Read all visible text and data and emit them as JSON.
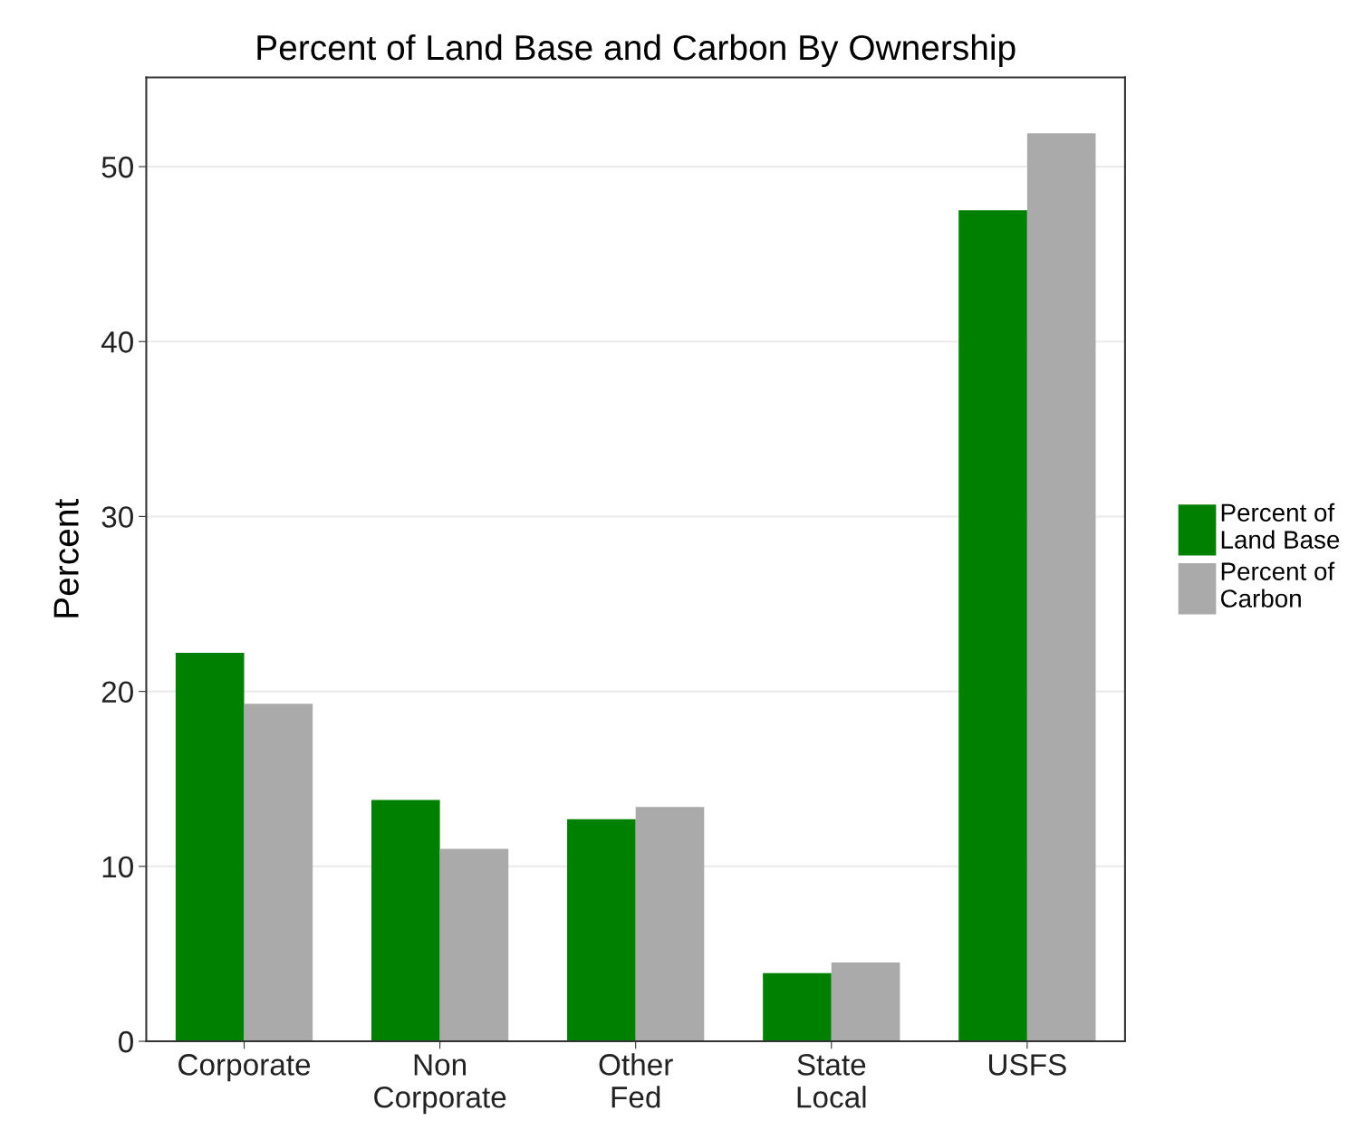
{
  "chart_data": {
    "type": "bar",
    "title": "Percent of Land Base and Carbon By Ownership",
    "ylabel": "Percent",
    "categories": [
      "Corporate",
      "Non\nCorporate",
      "Other\nFed",
      "State\nLocal",
      "USFS"
    ],
    "series": [
      {
        "name": "Percent of\nLand Base",
        "color": "#008000",
        "values": [
          22.2,
          13.8,
          12.7,
          3.9,
          47.5
        ]
      },
      {
        "name": "Percent of\nCarbon",
        "color": "#aaaaaa",
        "values": [
          19.3,
          11.0,
          13.4,
          4.5,
          51.9
        ]
      }
    ],
    "ylim": [
      0,
      55.1
    ],
    "yticks": [
      0,
      10,
      20,
      30,
      40,
      50
    ],
    "grid": "y",
    "legend": "right"
  }
}
